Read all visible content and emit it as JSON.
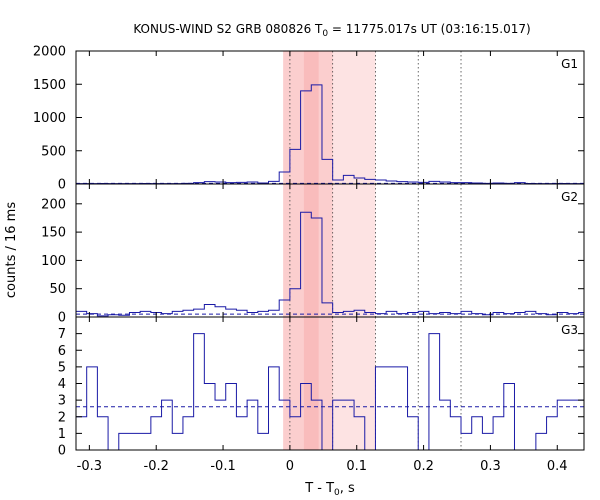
{
  "chart_data": {
    "type": "line",
    "style": "step-histogram",
    "title": {
      "prefix": "KONUS-WIND S2 GRB 080826 T",
      "subscript": "0",
      "suffix": " = 11775.017s UT (03:16:15.017)"
    },
    "xlabel": {
      "prefix": "T - T",
      "subscript": "0",
      "suffix": ", s"
    },
    "ylabel": "counts / 16 ms",
    "xlim": [
      -0.32,
      0.44
    ],
    "xticks": [
      -0.3,
      -0.2,
      -0.1,
      0,
      0.1,
      0.2,
      0.3,
      0.4
    ],
    "xtick_labels": [
      "-0.3",
      "-0.2",
      "-0.1",
      "0",
      "0.1",
      "0.2",
      "0.3",
      "0.4"
    ],
    "bin_width_s": 0.016,
    "vertical_dotted_lines": [
      0,
      0.064,
      0.128,
      0.192,
      0.256
    ],
    "shaded_regions": [
      {
        "from": -0.01,
        "to": 0.128,
        "color": "#fde3e3"
      },
      {
        "from": -0.01,
        "to": 0.064,
        "color": "#fbcece"
      },
      {
        "from": 0.021,
        "to": 0.043,
        "color": "#f9bcbc"
      }
    ],
    "line_color": "#1a1aa6",
    "panels": [
      {
        "name": "G1",
        "ylim": [
          0,
          2000
        ],
        "yticks": [
          0,
          500,
          1000,
          1500,
          2000
        ],
        "background_level": 10,
        "series": [
          {
            "x": -0.32,
            "y": 5
          },
          {
            "x": -0.304,
            "y": 5
          },
          {
            "x": -0.288,
            "y": 8
          },
          {
            "x": -0.272,
            "y": 5
          },
          {
            "x": -0.256,
            "y": 6
          },
          {
            "x": -0.24,
            "y": 5
          },
          {
            "x": -0.224,
            "y": 8
          },
          {
            "x": -0.208,
            "y": 5
          },
          {
            "x": -0.192,
            "y": 6
          },
          {
            "x": -0.176,
            "y": 5
          },
          {
            "x": -0.16,
            "y": 10
          },
          {
            "x": -0.144,
            "y": 20
          },
          {
            "x": -0.128,
            "y": 35
          },
          {
            "x": -0.112,
            "y": 30
          },
          {
            "x": -0.096,
            "y": 20
          },
          {
            "x": -0.08,
            "y": 25
          },
          {
            "x": -0.064,
            "y": 30
          },
          {
            "x": -0.048,
            "y": 15
          },
          {
            "x": -0.032,
            "y": 40
          },
          {
            "x": -0.016,
            "y": 180
          },
          {
            "x": 0.0,
            "y": 520
          },
          {
            "x": 0.016,
            "y": 1400
          },
          {
            "x": 0.032,
            "y": 1490
          },
          {
            "x": 0.048,
            "y": 370
          },
          {
            "x": 0.064,
            "y": 60
          },
          {
            "x": 0.08,
            "y": 130
          },
          {
            "x": 0.096,
            "y": 90
          },
          {
            "x": 0.112,
            "y": 70
          },
          {
            "x": 0.128,
            "y": 60
          },
          {
            "x": 0.144,
            "y": 45
          },
          {
            "x": 0.16,
            "y": 35
          },
          {
            "x": 0.176,
            "y": 30
          },
          {
            "x": 0.192,
            "y": 25
          },
          {
            "x": 0.208,
            "y": 40
          },
          {
            "x": 0.224,
            "y": 30
          },
          {
            "x": 0.24,
            "y": 20
          },
          {
            "x": 0.256,
            "y": 20
          },
          {
            "x": 0.272,
            "y": 15
          },
          {
            "x": 0.288,
            "y": 10
          },
          {
            "x": 0.304,
            "y": 15
          },
          {
            "x": 0.32,
            "y": 10
          },
          {
            "x": 0.336,
            "y": 20
          },
          {
            "x": 0.352,
            "y": 8
          },
          {
            "x": 0.368,
            "y": 6
          },
          {
            "x": 0.384,
            "y": 5
          },
          {
            "x": 0.4,
            "y": 8
          },
          {
            "x": 0.416,
            "y": 5
          },
          {
            "x": 0.432,
            "y": 5
          }
        ]
      },
      {
        "name": "G2",
        "ylim": [
          0,
          235
        ],
        "yticks": [
          0,
          50,
          100,
          150,
          200
        ],
        "background_level": 5,
        "series": [
          {
            "x": -0.32,
            "y": 10
          },
          {
            "x": -0.304,
            "y": 6
          },
          {
            "x": -0.288,
            "y": 2
          },
          {
            "x": -0.272,
            "y": 4
          },
          {
            "x": -0.256,
            "y": 3
          },
          {
            "x": -0.24,
            "y": 8
          },
          {
            "x": -0.224,
            "y": 10
          },
          {
            "x": -0.208,
            "y": 8
          },
          {
            "x": -0.192,
            "y": 6
          },
          {
            "x": -0.176,
            "y": 10
          },
          {
            "x": -0.16,
            "y": 12
          },
          {
            "x": -0.144,
            "y": 14
          },
          {
            "x": -0.128,
            "y": 22
          },
          {
            "x": -0.112,
            "y": 18
          },
          {
            "x": -0.096,
            "y": 14
          },
          {
            "x": -0.08,
            "y": 12
          },
          {
            "x": -0.064,
            "y": 8
          },
          {
            "x": -0.048,
            "y": 10
          },
          {
            "x": -0.032,
            "y": 12
          },
          {
            "x": -0.016,
            "y": 30
          },
          {
            "x": 0.0,
            "y": 50
          },
          {
            "x": 0.016,
            "y": 185
          },
          {
            "x": 0.032,
            "y": 175
          },
          {
            "x": 0.048,
            "y": 25
          },
          {
            "x": 0.064,
            "y": 8
          },
          {
            "x": 0.08,
            "y": 10
          },
          {
            "x": 0.096,
            "y": 12
          },
          {
            "x": 0.112,
            "y": 8
          },
          {
            "x": 0.128,
            "y": 6
          },
          {
            "x": 0.144,
            "y": 10
          },
          {
            "x": 0.16,
            "y": 6
          },
          {
            "x": 0.176,
            "y": 8
          },
          {
            "x": 0.192,
            "y": 10
          },
          {
            "x": 0.208,
            "y": 6
          },
          {
            "x": 0.224,
            "y": 8
          },
          {
            "x": 0.24,
            "y": 6
          },
          {
            "x": 0.256,
            "y": 10
          },
          {
            "x": 0.272,
            "y": 6
          },
          {
            "x": 0.288,
            "y": 4
          },
          {
            "x": 0.304,
            "y": 8
          },
          {
            "x": 0.32,
            "y": 6
          },
          {
            "x": 0.336,
            "y": 8
          },
          {
            "x": 0.352,
            "y": 10
          },
          {
            "x": 0.368,
            "y": 6
          },
          {
            "x": 0.384,
            "y": 4
          },
          {
            "x": 0.4,
            "y": 8
          },
          {
            "x": 0.416,
            "y": 6
          },
          {
            "x": 0.432,
            "y": 8
          }
        ]
      },
      {
        "name": "G3",
        "ylim": [
          0,
          8
        ],
        "yticks": [
          0,
          1,
          2,
          3,
          4,
          5,
          6,
          7
        ],
        "background_level": 2.6,
        "series": [
          {
            "x": -0.32,
            "y": 2
          },
          {
            "x": -0.304,
            "y": 5
          },
          {
            "x": -0.288,
            "y": 2
          },
          {
            "x": -0.272,
            "y": 0
          },
          {
            "x": -0.256,
            "y": 1
          },
          {
            "x": -0.24,
            "y": 1
          },
          {
            "x": -0.224,
            "y": 1
          },
          {
            "x": -0.208,
            "y": 2
          },
          {
            "x": -0.192,
            "y": 3
          },
          {
            "x": -0.176,
            "y": 1
          },
          {
            "x": -0.16,
            "y": 2
          },
          {
            "x": -0.144,
            "y": 7
          },
          {
            "x": -0.128,
            "y": 4
          },
          {
            "x": -0.112,
            "y": 3
          },
          {
            "x": -0.096,
            "y": 4
          },
          {
            "x": -0.08,
            "y": 2
          },
          {
            "x": -0.064,
            "y": 3
          },
          {
            "x": -0.048,
            "y": 1
          },
          {
            "x": -0.032,
            "y": 5
          },
          {
            "x": -0.016,
            "y": 3
          },
          {
            "x": 0.0,
            "y": 2
          },
          {
            "x": 0.016,
            "y": 4
          },
          {
            "x": 0.032,
            "y": 3
          },
          {
            "x": 0.048,
            "y": 0
          },
          {
            "x": 0.064,
            "y": 3
          },
          {
            "x": 0.08,
            "y": 3
          },
          {
            "x": 0.096,
            "y": 2
          },
          {
            "x": 0.112,
            "y": 0
          },
          {
            "x": 0.128,
            "y": 5
          },
          {
            "x": 0.144,
            "y": 5
          },
          {
            "x": 0.16,
            "y": 5
          },
          {
            "x": 0.176,
            "y": 2
          },
          {
            "x": 0.192,
            "y": 0
          },
          {
            "x": 0.208,
            "y": 7
          },
          {
            "x": 0.224,
            "y": 3
          },
          {
            "x": 0.24,
            "y": 2
          },
          {
            "x": 0.256,
            "y": 1
          },
          {
            "x": 0.272,
            "y": 2
          },
          {
            "x": 0.288,
            "y": 1
          },
          {
            "x": 0.304,
            "y": 2
          },
          {
            "x": 0.32,
            "y": 4
          },
          {
            "x": 0.336,
            "y": 0
          },
          {
            "x": 0.352,
            "y": 0
          },
          {
            "x": 0.368,
            "y": 1
          },
          {
            "x": 0.384,
            "y": 2
          },
          {
            "x": 0.4,
            "y": 3
          },
          {
            "x": 0.416,
            "y": 3
          },
          {
            "x": 0.432,
            "y": 3
          }
        ]
      }
    ]
  }
}
